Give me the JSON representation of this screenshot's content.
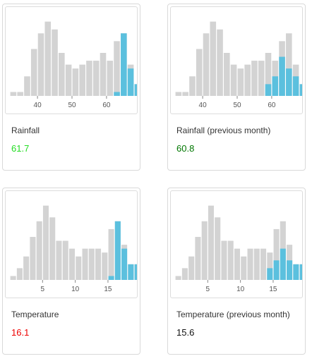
{
  "colors": {
    "bar_default": "#d3d3d3",
    "bar_highlight": "#5bc0de"
  },
  "cards": [
    {
      "label": "Rainfall",
      "value": "61.7",
      "value_color": "#22dd22",
      "chart_data": {
        "type": "bar",
        "x_domain": [
          32,
          68
        ],
        "bin_width": 2,
        "bin_start": 32,
        "ylim": [
          0,
          22
        ],
        "values": [
          1,
          1,
          5,
          12,
          16,
          19,
          17,
          11,
          8,
          7,
          8,
          9,
          9,
          11,
          9,
          14,
          16,
          8,
          3,
          3
        ],
        "highlight": [
          0,
          0,
          0,
          0,
          0,
          0,
          0,
          0,
          0,
          0,
          0,
          0,
          0,
          0,
          0,
          1,
          16,
          7,
          3,
          3
        ],
        "x_ticks": [
          40,
          50,
          60
        ],
        "x_tick_labels": [
          "40",
          "50",
          "60"
        ]
      }
    },
    {
      "label": "Rainfall (previous month)",
      "value": "60.8",
      "value_color": "#007700",
      "chart_data": {
        "type": "bar",
        "x_domain": [
          32,
          68
        ],
        "bin_width": 2,
        "bin_start": 32,
        "ylim": [
          0,
          22
        ],
        "values": [
          1,
          1,
          5,
          12,
          16,
          19,
          17,
          11,
          8,
          7,
          8,
          9,
          9,
          11,
          9,
          14,
          16,
          8,
          3,
          3
        ],
        "highlight": [
          0,
          0,
          0,
          0,
          0,
          0,
          0,
          0,
          0,
          0,
          0,
          0,
          0,
          3,
          5,
          10,
          7,
          5,
          3,
          3
        ],
        "x_ticks": [
          40,
          50,
          60
        ],
        "x_tick_labels": [
          "40",
          "50",
          "60"
        ]
      }
    },
    {
      "label": "Temperature",
      "value": "16.1",
      "value_color": "#ee0000",
      "chart_data": {
        "type": "bar",
        "x_domain": [
          0,
          19
        ],
        "bin_width": 1,
        "bin_start": 0,
        "ylim": [
          0,
          22
        ],
        "values": [
          1,
          3,
          6,
          11,
          15,
          19,
          16,
          10,
          10,
          8,
          6,
          8,
          8,
          8,
          7,
          13,
          15,
          9,
          4,
          4
        ],
        "highlight": [
          0,
          0,
          0,
          0,
          0,
          0,
          0,
          0,
          0,
          0,
          0,
          0,
          0,
          0,
          0,
          1,
          15,
          8,
          4,
          4
        ],
        "x_ticks": [
          5,
          10,
          15
        ],
        "x_tick_labels": [
          "5",
          "10",
          "15"
        ]
      }
    },
    {
      "label": "Temperature (previous month)",
      "value": "15.6",
      "value_color": "#111111",
      "chart_data": {
        "type": "bar",
        "x_domain": [
          0,
          19
        ],
        "bin_width": 1,
        "bin_start": 0,
        "ylim": [
          0,
          22
        ],
        "values": [
          1,
          3,
          6,
          11,
          15,
          19,
          16,
          10,
          10,
          8,
          6,
          8,
          8,
          8,
          7,
          13,
          15,
          9,
          4,
          4
        ],
        "highlight": [
          0,
          0,
          0,
          0,
          0,
          0,
          0,
          0,
          0,
          0,
          0,
          0,
          0,
          0,
          3,
          5,
          8,
          5,
          4,
          4
        ],
        "x_ticks": [
          5,
          10,
          15
        ],
        "x_tick_labels": [
          "5",
          "10",
          "15"
        ]
      }
    }
  ]
}
